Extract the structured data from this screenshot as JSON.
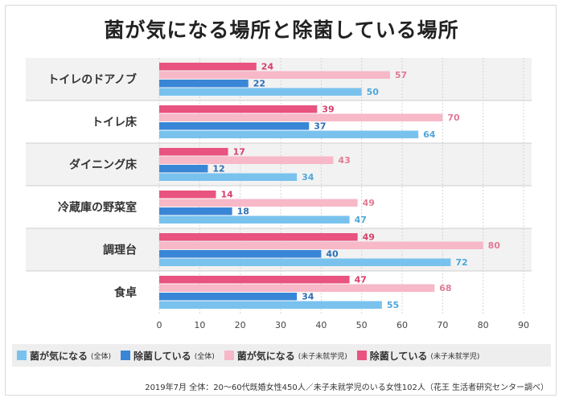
{
  "title": "菌が気になる場所と除菌している場所",
  "chart_data": {
    "type": "bar",
    "orientation": "horizontal",
    "categories": [
      "トイレのドアノブ",
      "トイレ床",
      "ダイニング床",
      "冷蔵庫の野菜室",
      "調理台",
      "食卓"
    ],
    "series": [
      {
        "name": "除菌している",
        "group": "(未子未就学児)",
        "color": "#e8537f",
        "label_color": "#d93f6b",
        "values": [
          24,
          39,
          17,
          14,
          49,
          47
        ]
      },
      {
        "name": "菌が気になる",
        "group": "(未子未就学児)",
        "color": "#f7b8c8",
        "label_color": "#e27a95",
        "values": [
          57,
          70,
          43,
          49,
          80,
          68
        ]
      },
      {
        "name": "除菌している",
        "group": "(全体)",
        "color": "#3a86d6",
        "label_color": "#2f6fb5",
        "values": [
          22,
          37,
          12,
          18,
          40,
          34
        ]
      },
      {
        "name": "菌が気になる",
        "group": "(全体)",
        "color": "#79c2ee",
        "label_color": "#4fa7da",
        "values": [
          50,
          64,
          34,
          47,
          72,
          55
        ]
      }
    ],
    "xlim": [
      0,
      90
    ],
    "xticks": [
      0,
      10,
      20,
      30,
      40,
      50,
      60,
      70,
      80,
      90
    ],
    "grid": true,
    "legend_position": "bottom"
  },
  "legend": [
    {
      "label": "菌が気になる",
      "sub": "(全体)",
      "color": "#79c2ee"
    },
    {
      "label": "除菌している",
      "sub": "(全体)",
      "color": "#3a86d6"
    },
    {
      "label": "菌が気になる",
      "sub": "(未子未就学児)",
      "color": "#f7b8c8"
    },
    {
      "label": "除菌している",
      "sub": "(未子未就学児)",
      "color": "#e8537f"
    }
  ],
  "footnote": "2019年7月  全体：20～60代既婚女性450人／未子未就学児のいる女性102人（花王 生活者研究センター調べ）"
}
